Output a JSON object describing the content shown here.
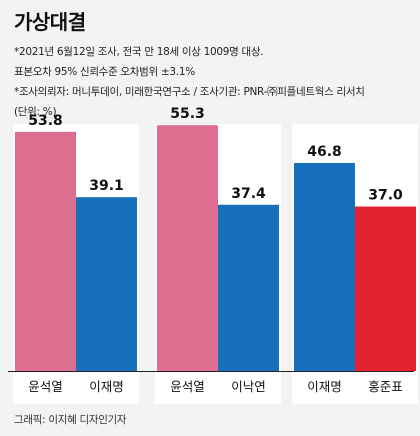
{
  "header": {
    "title": "가상대결",
    "note1": "*2021년 6월12일 조사, 전국 만 18세 이상 1009명 대상.",
    "note2": "표본오차 95% 신뢰수준 오차범위 ±3.1%",
    "note3": "*조사의뢰자: 머니투데이, 미래한국연구소 / 조사기관: PNR-㈜피플네트웍스 리서치",
    "unit": "(단위: %)"
  },
  "credit": "그래픽: 이지혜 디자인기자",
  "colors": {
    "pink": "#de6e90",
    "blue": "#1870bc",
    "red": "#e32332"
  },
  "chart_data": {
    "type": "bar",
    "ylim": [
      0,
      60
    ],
    "groups": [
      {
        "bars": [
          {
            "label": "윤석열",
            "value": 53.8,
            "display": "53.8",
            "color": "pink"
          },
          {
            "label": "이재명",
            "value": 39.1,
            "display": "39.1",
            "color": "blue"
          }
        ]
      },
      {
        "bars": [
          {
            "label": "윤석열",
            "value": 55.3,
            "display": "55.3",
            "color": "pink"
          },
          {
            "label": "이낙연",
            "value": 37.4,
            "display": "37.4",
            "color": "blue"
          }
        ]
      },
      {
        "bars": [
          {
            "label": "이재명",
            "value": 46.8,
            "display": "46.8",
            "color": "blue"
          },
          {
            "label": "홍준표",
            "value": 37.0,
            "display": "37.0",
            "color": "red"
          }
        ]
      }
    ]
  }
}
